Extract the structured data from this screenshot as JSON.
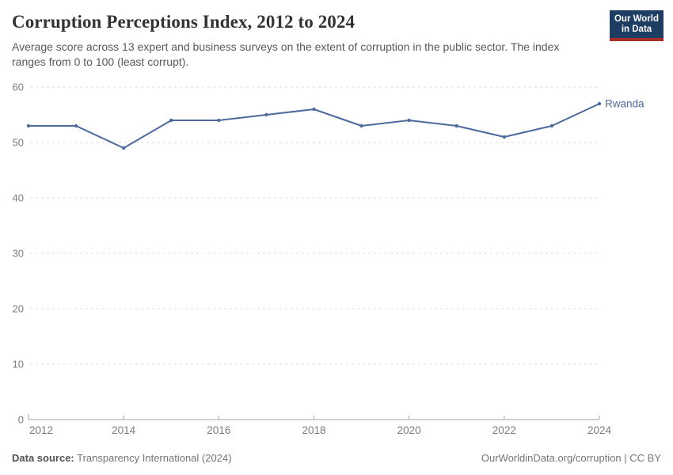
{
  "header": {
    "title": "Corruption Perceptions Index, 2012 to 2024",
    "subtitle": "Average score across 13 expert and business surveys on the extent of corruption in the public sector. The index ranges from 0 to 100 (least corrupt)."
  },
  "logo": {
    "line1": "Our World",
    "line2": "in Data",
    "bg_color": "#1d3d63",
    "accent_color": "#a82e27"
  },
  "chart_data": {
    "type": "line",
    "title": "Corruption Perceptions Index, 2012 to 2024",
    "x": [
      2012,
      2013,
      2014,
      2015,
      2016,
      2017,
      2018,
      2019,
      2020,
      2021,
      2022,
      2023,
      2024
    ],
    "series": [
      {
        "name": "Rwanda",
        "values": [
          53,
          53,
          49,
          54,
          54,
          55,
          56,
          53,
          54,
          53,
          51,
          53,
          57
        ],
        "color": "#4c6a9c"
      }
    ],
    "xlabel": "",
    "ylabel": "",
    "ylim": [
      0,
      60
    ],
    "yticks": [
      0,
      10,
      20,
      30,
      40,
      50,
      60
    ],
    "xticks": [
      2012,
      2014,
      2016,
      2018,
      2020,
      2022,
      2024
    ],
    "grid": "horizontal-dashed",
    "legend_position": "end-of-line-label",
    "entity_label": "Rwanda",
    "colors": {
      "line": "#4c6a9c",
      "gridline": "#dddddd",
      "axis": "#a5a5a5",
      "tick_label": "#7d7d7d"
    }
  },
  "footer": {
    "datasource_label": "Data source:",
    "datasource_value": " Transparency International (2024)",
    "credit": "OurWorldinData.org/corruption | CC BY"
  }
}
